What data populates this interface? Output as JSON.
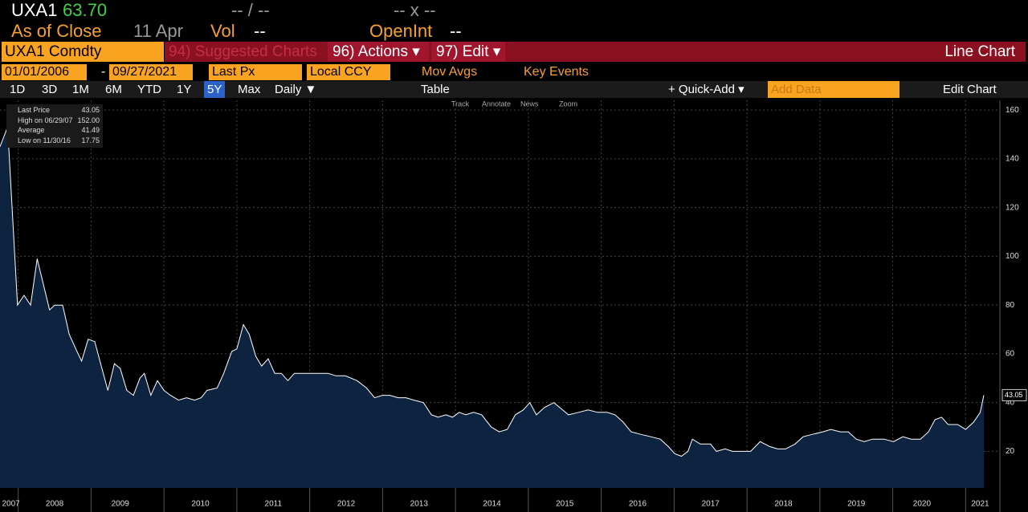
{
  "header": {
    "ticker": "UXA1",
    "price": "63.70",
    "change": "-- / --",
    "bidask": "-- x --",
    "asof": "As of Close",
    "date": "11 Apr",
    "vol_label": "Vol",
    "vol": "--",
    "oi_label": "OpenInt",
    "oi": "--"
  },
  "toolbar": {
    "security": "UXA1 Comdty",
    "suggested": "94) Suggested Charts",
    "actions": "96) Actions ▾",
    "edit": "97) Edit ▾",
    "chart_kind": "Line Chart",
    "start": "01/01/2006",
    "dash": "-",
    "end": "09/27/2021",
    "field": "Last Px",
    "currency": "Local CCY",
    "mov_avgs": "Mov Avgs",
    "key_events": "Key Events",
    "ranges": [
      "1D",
      "3D",
      "1M",
      "6M",
      "YTD",
      "1Y",
      "5Y",
      "Max"
    ],
    "period": "Daily ▼",
    "table": "Table",
    "quick_add": "+ Quick-Add ▾",
    "add_data": "Add Data",
    "edit_chart": "Edit Chart",
    "tools": [
      "Track",
      "Annotate",
      "News",
      "Zoom"
    ]
  },
  "legend": [
    {
      "label": "Last Price",
      "value": "43.05"
    },
    {
      "label": "High on 06/29/07",
      "value": "152.00"
    },
    {
      "label": "Average",
      "value": "41.49"
    },
    {
      "label": "Low on 11/30/16",
      "value": "17.75"
    }
  ],
  "chart_data": {
    "type": "area",
    "xlim": [
      2007.75,
      2021.47
    ],
    "ylim": [
      5,
      164
    ],
    "yticks": [
      20,
      40,
      60,
      80,
      100,
      120,
      140,
      160
    ],
    "xgrid": [
      2008,
      2009,
      2010,
      2011,
      2012,
      2013,
      2014,
      2015,
      2016,
      2017,
      2018,
      2019,
      2020,
      2021
    ],
    "xticks": [
      {
        "value": 2007.9,
        "label": "2007"
      },
      {
        "value": 2008.5,
        "label": "2008"
      },
      {
        "value": 2009.4,
        "label": "2009"
      },
      {
        "value": 2010.5,
        "label": "2010"
      },
      {
        "value": 2011.5,
        "label": "2011"
      },
      {
        "value": 2012.5,
        "label": "2012"
      },
      {
        "value": 2013.5,
        "label": "2013"
      },
      {
        "value": 2014.5,
        "label": "2014"
      },
      {
        "value": 2015.5,
        "label": "2015"
      },
      {
        "value": 2016.5,
        "label": "2016"
      },
      {
        "value": 2017.5,
        "label": "2017"
      },
      {
        "value": 2018.5,
        "label": "2018"
      },
      {
        "value": 2019.5,
        "label": "2019"
      },
      {
        "value": 2020.4,
        "label": "2020"
      },
      {
        "value": 2021.2,
        "label": "2021"
      }
    ],
    "grid": true,
    "last_label": "43.05",
    "x": [
      2007.75,
      2007.84,
      2007.86,
      2007.99,
      2008.08,
      2008.17,
      2008.26,
      2008.35,
      2008.43,
      2008.5,
      2008.61,
      2008.7,
      2008.79,
      2008.87,
      2008.96,
      2009.05,
      2009.14,
      2009.23,
      2009.32,
      2009.4,
      2009.49,
      2009.58,
      2009.67,
      2009.73,
      2009.82,
      2009.91,
      2010.0,
      2010.09,
      2010.2,
      2010.31,
      2010.42,
      2010.51,
      2010.59,
      2010.73,
      2010.82,
      2010.93,
      2011.0,
      2011.09,
      2011.17,
      2011.26,
      2011.34,
      2011.43,
      2011.52,
      2011.61,
      2011.7,
      2011.79,
      2011.94,
      2012.09,
      2012.25,
      2012.36,
      2012.49,
      2012.65,
      2012.78,
      2012.89,
      2013.0,
      2013.1,
      2013.21,
      2013.32,
      2013.43,
      2013.56,
      2013.67,
      2013.76,
      2013.87,
      2013.96,
      2014.05,
      2014.14,
      2014.25,
      2014.36,
      2014.49,
      2014.6,
      2014.71,
      2014.82,
      2014.93,
      2015.02,
      2015.11,
      2015.22,
      2015.35,
      2015.47,
      2015.55,
      2015.69,
      2015.82,
      2015.95,
      2016.08,
      2016.19,
      2016.3,
      2016.41,
      2016.54,
      2016.68,
      2016.81,
      2016.92,
      2017.01,
      2017.1,
      2017.19,
      2017.25,
      2017.36,
      2017.5,
      2017.58,
      2017.7,
      2017.8,
      2017.92,
      2018.05,
      2018.18,
      2018.31,
      2018.42,
      2018.53,
      2018.66,
      2018.77,
      2018.9,
      2019.04,
      2019.15,
      2019.28,
      2019.39,
      2019.5,
      2019.61,
      2019.72,
      2019.88,
      2020.01,
      2020.14,
      2020.25,
      2020.38,
      2020.49,
      2020.58,
      2020.67,
      2020.76,
      2020.89,
      2021.0,
      2021.11,
      2021.2,
      2021.25
    ],
    "series": [
      {
        "name": "Last Price",
        "color": "#ffffff",
        "fill": "#0d2340",
        "values": [
          145,
          152,
          150,
          80,
          84,
          80,
          99,
          88,
          78,
          80,
          80,
          68,
          62,
          57,
          66,
          65,
          55,
          45,
          56,
          54,
          45,
          43,
          50,
          52,
          43,
          49,
          45,
          43,
          41,
          42,
          41,
          42,
          45,
          46,
          52,
          61,
          62,
          72,
          68,
          59,
          55,
          58,
          52,
          52,
          49,
          52,
          52,
          52,
          52,
          51,
          51,
          49,
          46,
          42,
          43,
          43,
          42,
          42,
          41,
          40,
          35,
          34,
          35,
          34,
          36,
          35,
          36,
          35,
          30,
          28,
          29,
          35,
          37,
          40,
          35,
          38,
          40,
          37,
          35,
          36,
          37,
          36,
          36,
          35,
          32,
          28,
          27,
          26,
          25,
          22,
          19,
          18,
          20,
          25,
          23,
          23,
          20,
          21,
          20,
          20,
          20,
          24,
          22,
          21,
          21,
          23,
          26,
          27,
          28,
          29,
          28,
          28,
          25,
          24,
          25,
          25,
          24,
          26,
          25,
          25,
          28,
          33,
          34,
          31,
          31,
          29,
          32,
          36,
          43.05
        ]
      }
    ]
  }
}
